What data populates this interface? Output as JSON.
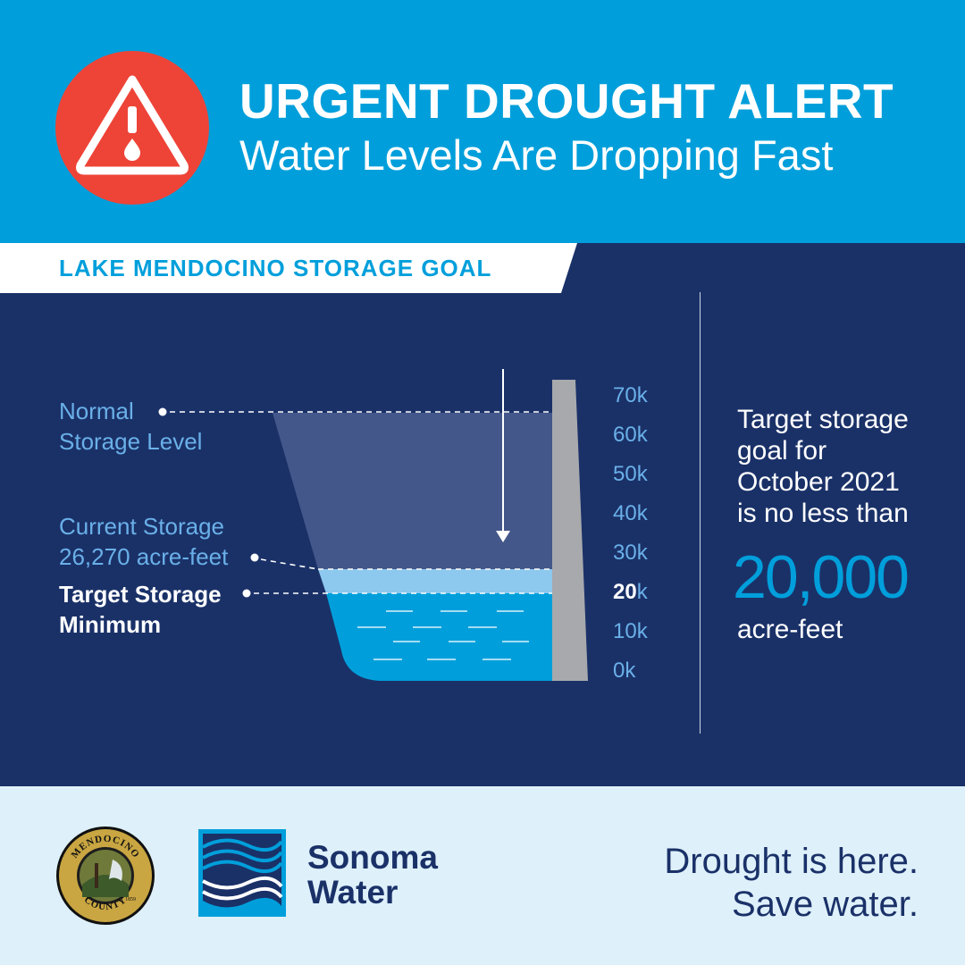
{
  "header": {
    "title": "URGENT DROUGHT ALERT",
    "subtitle": "Water Levels Are Dropping Fast",
    "icon": "warning-triangle-droplet-icon",
    "background": "#009fdb",
    "icon_circle_color": "#ee4337"
  },
  "section": {
    "banner": "LAKE MENDOCINO STORAGE GOAL",
    "background": "#1a3168"
  },
  "reservoir": {
    "labels": {
      "normal_line1": "Normal",
      "normal_line2": "Storage Level",
      "current_line1": "Current Storage",
      "current_line2": "26,270 acre-feet",
      "target_line1": "Target Storage",
      "target_line2": "Minimum"
    },
    "ticks": [
      {
        "value": "70",
        "unit": "k",
        "bold": false
      },
      {
        "value": "60",
        "unit": "k",
        "bold": false
      },
      {
        "value": "50",
        "unit": "k",
        "bold": false
      },
      {
        "value": "40",
        "unit": "k",
        "bold": false
      },
      {
        "value": "30",
        "unit": "k",
        "bold": false
      },
      {
        "value": "20",
        "unit": "k",
        "bold": true
      },
      {
        "value": "10",
        "unit": "k",
        "bold": false
      },
      {
        "value": "0",
        "unit": "k",
        "bold": false
      }
    ],
    "normal_level_acre_feet": 68400,
    "current_storage_acre_feet": 26270,
    "target_minimum_acre_feet": 20000,
    "colors": {
      "dam": "#a7a9ac",
      "empty_volume": "#44578a",
      "current_band": "#8dc8ee",
      "water": "#009fdb"
    }
  },
  "side_panel": {
    "line1": "Target storage",
    "line2": "goal for",
    "line3": "October 2021",
    "line4": "is no less than",
    "big_number": "20,000",
    "unit": "acre-feet"
  },
  "footer": {
    "seal_icon": "mendocino-county-seal-icon",
    "seal_text_top": "MENDOCINO",
    "seal_text_bottom": "COUNTY",
    "seal_year": "1859",
    "logo_icon": "sonoma-water-logo-icon",
    "org_line1": "Sonoma",
    "org_line2": "Water",
    "tagline_line1": "Drought is here.",
    "tagline_line2": "Save water.",
    "background": "#def0fa",
    "text_color": "#1a3168"
  }
}
